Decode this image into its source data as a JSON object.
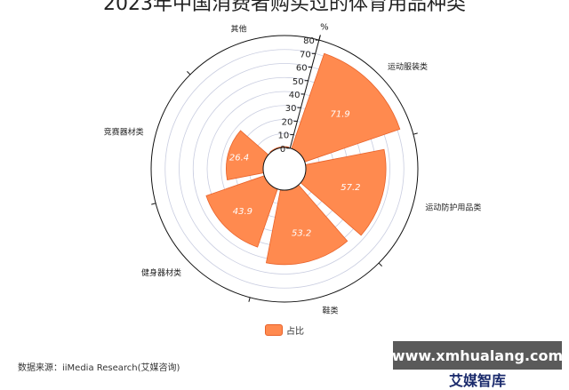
{
  "title": "2023年中国消费者购买过的体育用品种类",
  "chart_data": {
    "type": "polar-bar",
    "title": "2023年中国消费者购买过的体育用品种类",
    "radial_axis_label": "%",
    "radial_range": [
      0,
      80
    ],
    "radial_ticks": [
      0,
      10,
      20,
      30,
      40,
      50,
      60,
      70,
      80
    ],
    "categories": [
      "运动服装类",
      "运动防护用品类",
      "鞋类",
      "健身器材类",
      "竞赛器材类",
      "其他"
    ],
    "series": [
      {
        "name": "占比",
        "values": [
          71.9,
          57.2,
          53.2,
          43.9,
          26.4,
          0.6
        ]
      }
    ],
    "legend": "bottom",
    "color": "#ff8a4f"
  },
  "legend": {
    "label": "占比"
  },
  "source": "数据来源：iiMedia Research(艾媒咨询)",
  "watermark": "www.xmhualang.com",
  "brand": "艾媒智库"
}
